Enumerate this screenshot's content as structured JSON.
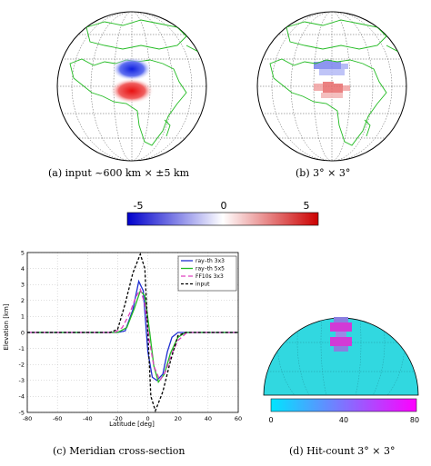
{
  "captions": {
    "a": "(a) input ~600 km × ±5 km",
    "b": "(b) 3° × 3°",
    "c": "(c) Meridian cross-section",
    "d": "(d) Hit-count 3° × 3°"
  },
  "colorbar_main": {
    "ticks": [
      "-5",
      "0",
      "5"
    ],
    "colors": [
      "#0000cc",
      "#ffffff",
      "#cc0000"
    ]
  },
  "colorbar_hits": {
    "ticks": [
      "0",
      "40",
      "80"
    ],
    "colors": [
      "#00e5ff",
      "#ff00ff"
    ]
  },
  "globe_colors": {
    "coast": "#22bb22",
    "grid": "#333333",
    "anomaly_pos": "#e63030",
    "anomaly_neg": "#2a3ee0",
    "hitcount_bg": "#31d8e0",
    "hitcount_hot": "#d23ad6"
  },
  "chart_data": {
    "type": "line",
    "xlabel": "Latitude [deg]",
    "ylabel": "Elevation [km]",
    "xlim": [
      -80,
      60
    ],
    "ylim": [
      -5,
      5
    ],
    "xticks": [
      "-80",
      "-60",
      "-40",
      "-20",
      "0",
      "20",
      "40",
      "60"
    ],
    "yticks": [
      "5",
      "4",
      "3",
      "2",
      "1",
      "0",
      "-1",
      "-2",
      "-3",
      "-4",
      "-5"
    ],
    "grid": true,
    "legend_position": "top-right",
    "series": [
      {
        "name": "ray–th 3x3",
        "color": "#1f2fd0",
        "dash": "",
        "x": [
          -80,
          -20,
          -15,
          -10,
          -6,
          -3,
          0,
          3,
          6,
          10,
          13,
          16,
          20,
          25,
          60
        ],
        "y": [
          0,
          0,
          0.1,
          1.4,
          3.2,
          2.6,
          -1.2,
          -2.8,
          -3.0,
          -2.6,
          -1.2,
          -0.3,
          0,
          0,
          0
        ]
      },
      {
        "name": "ray–th 5x5",
        "color": "#22bb22",
        "dash": "",
        "x": [
          -80,
          -20,
          -14,
          -9,
          -5,
          -2,
          1,
          4,
          7,
          11,
          15,
          20,
          25,
          60
        ],
        "y": [
          0,
          0,
          0.3,
          1.5,
          2.6,
          2.3,
          0.2,
          -2.1,
          -3.1,
          -2.6,
          -1.3,
          -0.3,
          0,
          0
        ]
      },
      {
        "name": "FF10s 3x3",
        "color": "#e040c0",
        "dash": "5,3",
        "x": [
          -80,
          -22,
          -17,
          -12,
          -8,
          -5,
          -2,
          1,
          4,
          8,
          12,
          16,
          20,
          26,
          60
        ],
        "y": [
          0,
          0,
          0.3,
          1.2,
          2.2,
          2.7,
          1.8,
          -0.5,
          -2.1,
          -3.0,
          -2.4,
          -1.3,
          -0.5,
          0,
          0
        ]
      },
      {
        "name": "input",
        "color": "#000000",
        "dash": "3,2",
        "x": [
          -80,
          -25,
          -20,
          -15,
          -10,
          -5,
          -2,
          0,
          2,
          5,
          10,
          15,
          20,
          25,
          60
        ],
        "y": [
          0,
          0,
          0.2,
          1.8,
          3.7,
          4.9,
          4.0,
          0,
          -4.0,
          -4.9,
          -3.7,
          -1.8,
          -0.2,
          0,
          0
        ]
      }
    ]
  }
}
